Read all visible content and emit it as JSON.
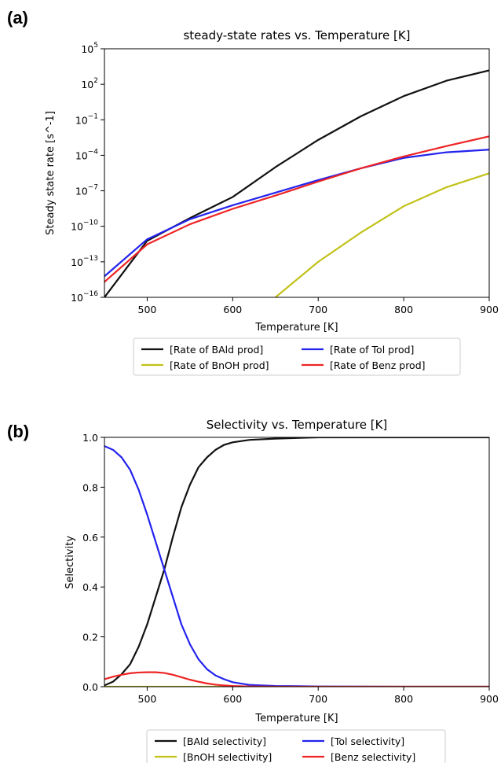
{
  "panels": {
    "a": {
      "label": "(a)"
    },
    "b": {
      "label": "(b)"
    }
  },
  "colors": {
    "black": "#111111",
    "olive": "#c2c21a",
    "blue": "#2323ee",
    "red": "#ee2424"
  },
  "chart_data": [
    {
      "type": "line",
      "title": "steady-state rates vs. Temperature [K]",
      "xlabel": "Temperature [K]",
      "ylabel": "Steady state rate [s^-1]",
      "yscale": "log",
      "xlim": [
        450,
        900
      ],
      "ylim": [
        1e-16,
        100000.0
      ],
      "x_ticks": [
        500,
        600,
        700,
        800,
        900
      ],
      "y_tick_exponents": [
        -16,
        -13,
        -10,
        -7,
        -4,
        -1,
        2,
        5
      ],
      "legend_position": "below plot, 2 columns",
      "x": [
        450,
        500,
        550,
        600,
        650,
        700,
        750,
        800,
        850,
        900
      ],
      "series": [
        {
          "name": "[Rate of BAld prod]",
          "color": "#111111",
          "values": [
            1e-16,
            6e-12,
            5e-10,
            3e-08,
            1e-05,
            0.002,
            0.2,
            10,
            200,
            1500
          ]
        },
        {
          "name": "[Rate of BnOH prod]",
          "color": "#c2c21a",
          "values": [
            null,
            null,
            null,
            null,
            1e-16,
            1e-13,
            3e-11,
            5e-09,
            2e-07,
            3e-06
          ]
        },
        {
          "name": "[Rate of Tol prod]",
          "color": "#2323ee",
          "values": [
            6e-15,
            8e-12,
            4e-10,
            6e-09,
            7e-08,
            8e-07,
            8e-06,
            6e-05,
            0.00018,
            0.0003
          ]
        },
        {
          "name": "[Rate of Benz prod]",
          "color": "#ee2424",
          "values": [
            2e-15,
            3e-12,
            1.5e-10,
            3e-09,
            4e-08,
            6e-07,
            8e-06,
            8e-05,
            0.0006,
            0.004
          ]
        }
      ]
    },
    {
      "type": "line",
      "title": "Selectivity vs. Temperature [K]",
      "xlabel": "Temperature [K]",
      "ylabel": "Selectivity",
      "xlim": [
        450,
        900
      ],
      "ylim": [
        0.0,
        1.0
      ],
      "x_ticks": [
        500,
        600,
        700,
        800,
        900
      ],
      "y_ticks": [
        "0.0",
        "0.2",
        "0.4",
        "0.6",
        "0.8",
        "1.0"
      ],
      "legend_position": "below plot, 2 columns",
      "x": [
        450,
        460,
        470,
        480,
        490,
        500,
        510,
        520,
        530,
        540,
        550,
        560,
        570,
        580,
        590,
        600,
        620,
        650,
        700,
        800,
        900
      ],
      "series": [
        {
          "name": "[BAld selectivity]",
          "color": "#111111",
          "values": [
            0.005,
            0.02,
            0.05,
            0.09,
            0.16,
            0.25,
            0.36,
            0.47,
            0.6,
            0.72,
            0.81,
            0.88,
            0.92,
            0.95,
            0.97,
            0.98,
            0.99,
            0.995,
            1.0,
            1.0,
            1.0
          ]
        },
        {
          "name": "[BnOH selectivity]",
          "color": "#c2c21a",
          "values": [
            0.0,
            0.0,
            0.0,
            0.0,
            0.0,
            0.0,
            0.0,
            0.0,
            0.0,
            0.0,
            0.0,
            0.0,
            0.0,
            0.0,
            0.0,
            0.0,
            0.0,
            0.0,
            0.0,
            0.0,
            0.0
          ]
        },
        {
          "name": "[Tol selectivity]",
          "color": "#2323ee",
          "values": [
            0.965,
            0.95,
            0.92,
            0.87,
            0.79,
            0.69,
            0.58,
            0.47,
            0.36,
            0.25,
            0.17,
            0.11,
            0.07,
            0.045,
            0.03,
            0.018,
            0.007,
            0.003,
            0.001,
            0.0,
            0.0
          ]
        },
        {
          "name": "[Benz selectivity]",
          "color": "#ee2424",
          "values": [
            0.03,
            0.04,
            0.048,
            0.054,
            0.057,
            0.058,
            0.058,
            0.055,
            0.048,
            0.038,
            0.028,
            0.02,
            0.013,
            0.008,
            0.005,
            0.003,
            0.001,
            0.0,
            0.0,
            0.0,
            0.0
          ]
        }
      ]
    }
  ]
}
